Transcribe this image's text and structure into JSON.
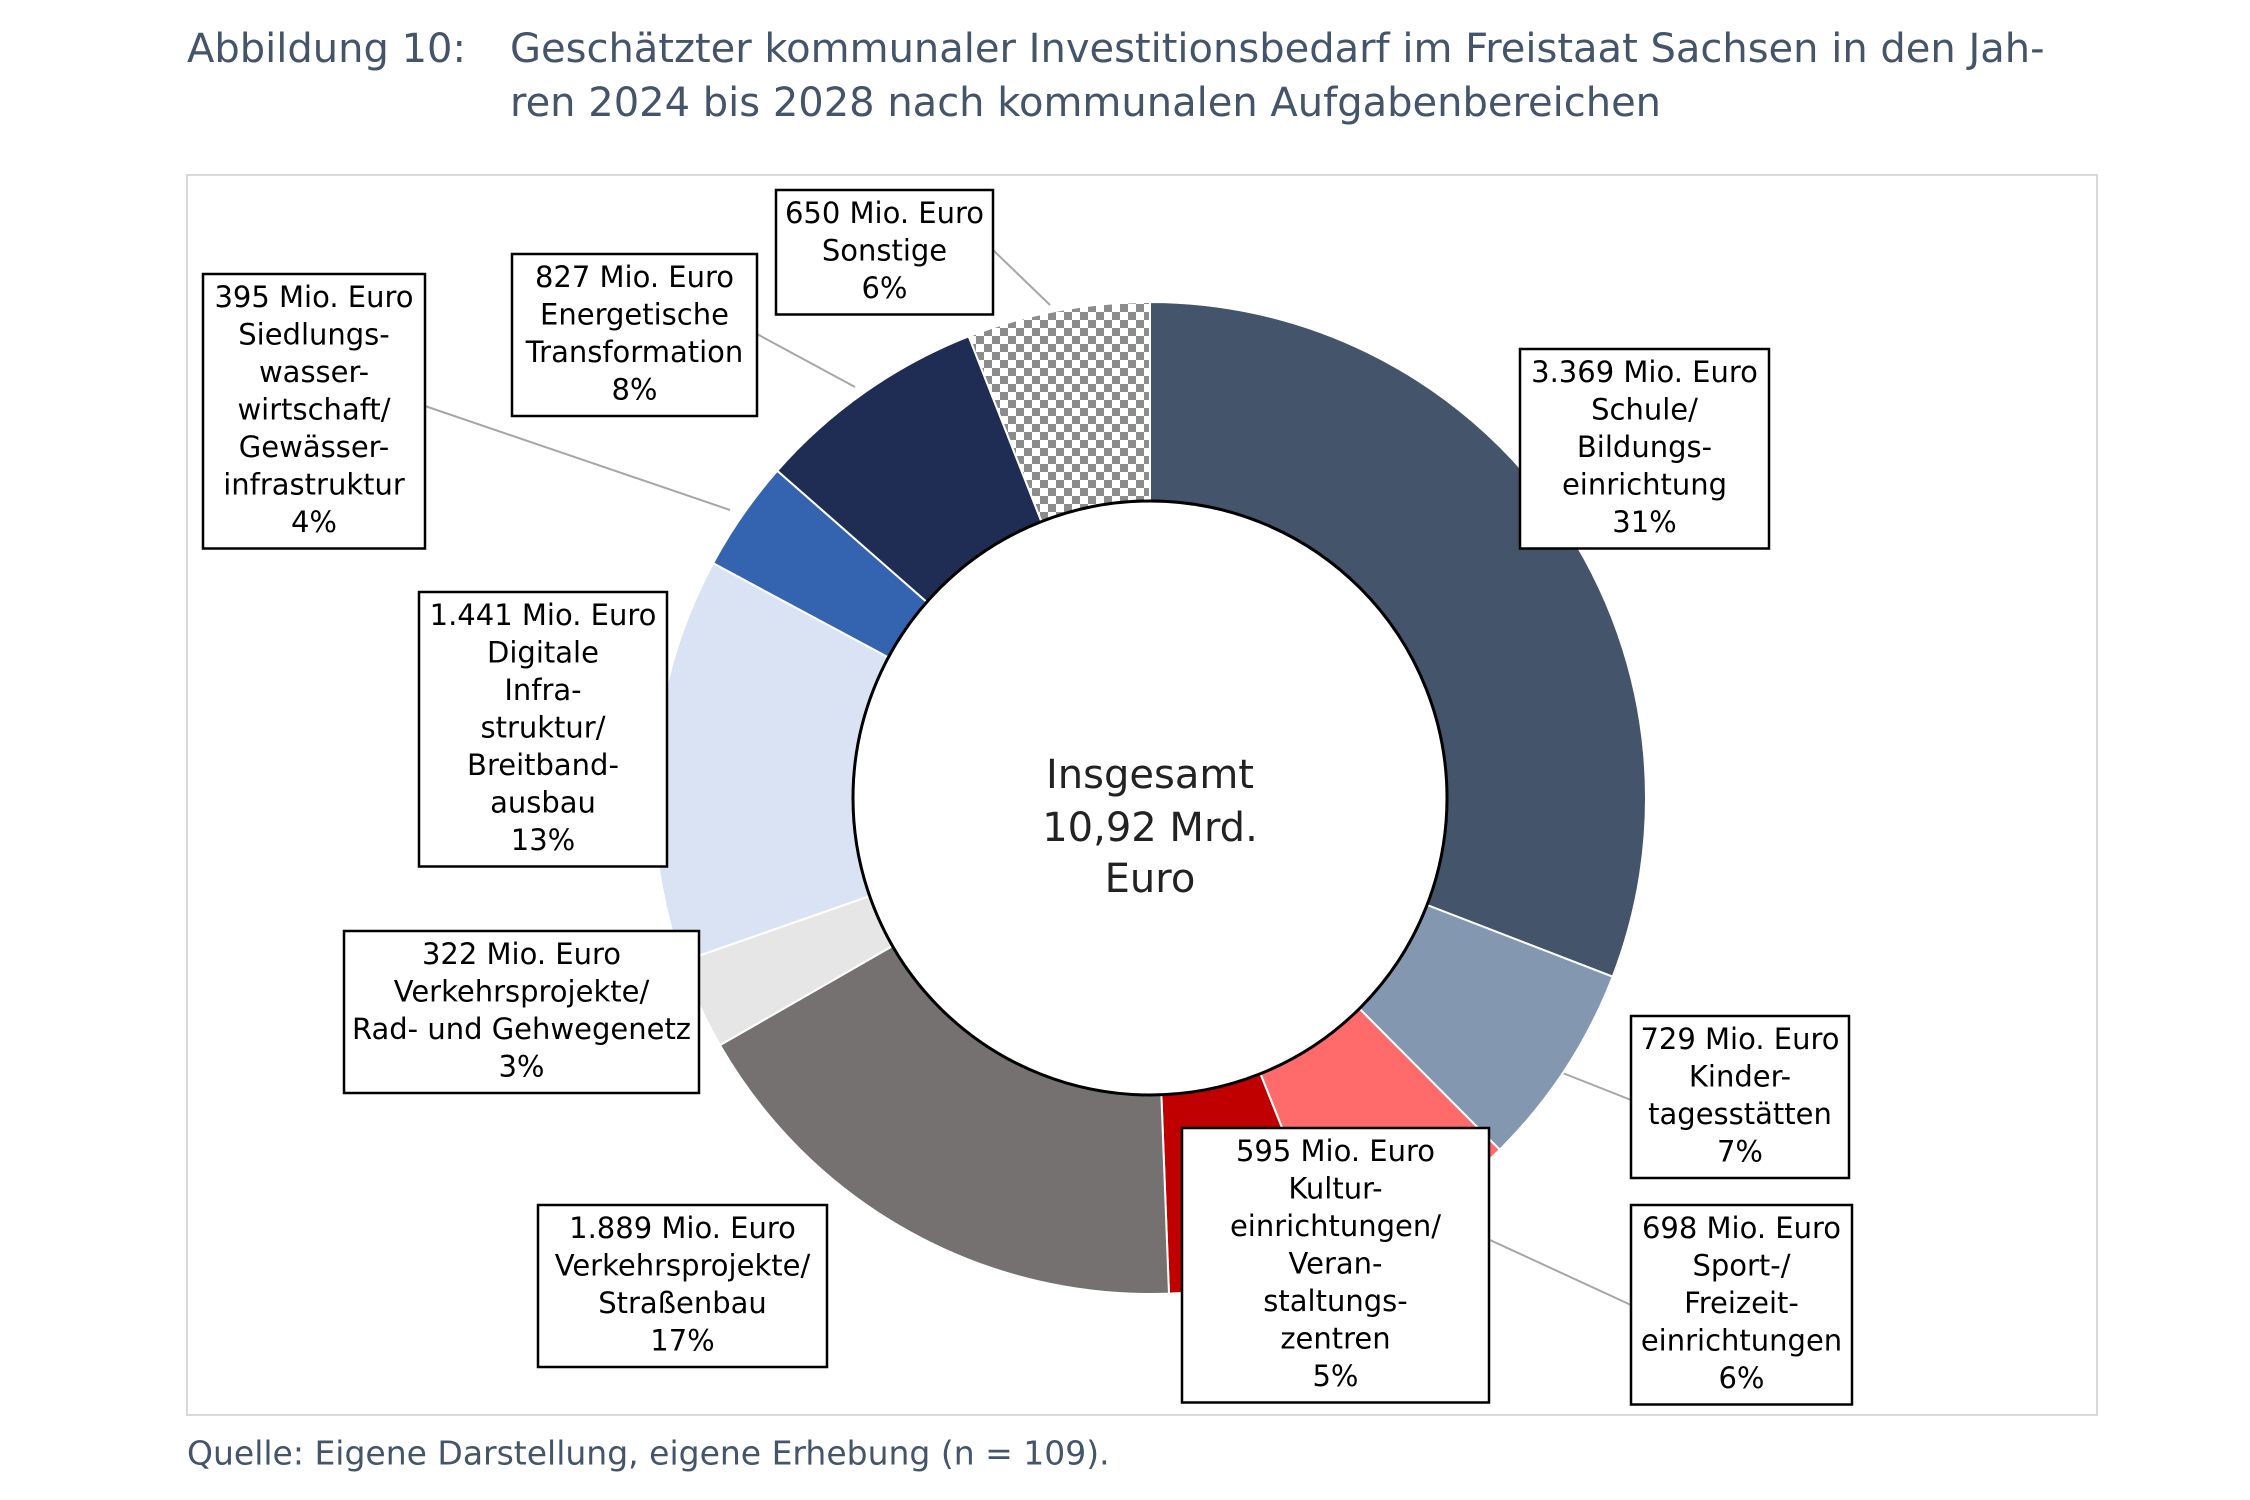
{
  "chart_data": {
    "type": "donut",
    "figure_label": "Abbildung 10:",
    "title_lines": [
      "Geschätzter kommunaler Investitionsbedarf im Freistaat Sachsen in den Jah-",
      "ren 2024 bis 2028 nach kommunalen Aufgabenbereichen"
    ],
    "center_lines": [
      "Insgesamt",
      "10,92 Mrd.",
      "Euro"
    ],
    "source": "Quelle: Eigene Darstellung, eigene Erhebung (n = 109).",
    "categories": [
      [
        "Schule/",
        "Bildungs-",
        "einrichtung"
      ],
      [
        "Kinder-",
        "tagesstätten"
      ],
      [
        "Sport-/",
        "Freizeit-",
        "einrichtungen"
      ],
      [
        "Kultur-",
        "einrichtungen/",
        "Veran-",
        "staltungs-",
        "zentren"
      ],
      [
        "Verkehrsprojekte/",
        "Straßenbau"
      ],
      [
        "Verkehrsprojekte/",
        "Rad- und Gehwegenetz"
      ],
      [
        "Digitale",
        "Infra-",
        "struktur/",
        "Breitband-",
        "ausbau"
      ],
      [
        "Siedlungs-",
        "wasser-",
        "wirtschaft/",
        "Gewässer-",
        "infrastruktur"
      ],
      [
        "Energetische",
        "Transformation"
      ],
      [
        "Sonstige"
      ]
    ],
    "values": [
      3369,
      729,
      698,
      595,
      1889,
      322,
      1441,
      395,
      827,
      650
    ],
    "value_labels": [
      "3.369 Mio. Euro",
      "729 Mio. Euro",
      "698 Mio. Euro",
      "595 Mio. Euro",
      "1.889 Mio. Euro",
      "322 Mio. Euro",
      "1.441 Mio. Euro",
      "395 Mio. Euro",
      "827 Mio. Euro",
      "650 Mio. Euro"
    ],
    "percentages": [
      31,
      7,
      6,
      5,
      17,
      3,
      13,
      4,
      8,
      6
    ],
    "percentage_labels": [
      "31%",
      "7%",
      "6%",
      "5%",
      "17%",
      "3%",
      "13%",
      "4%",
      "8%",
      "6%"
    ],
    "colors": [
      "#44546a",
      "#8497b0",
      "#ff6b6b",
      "#c00000",
      "#767171",
      "#e7e6e6",
      "#dae3f3",
      "#3463b0",
      "#1f2d54",
      "checker"
    ]
  }
}
